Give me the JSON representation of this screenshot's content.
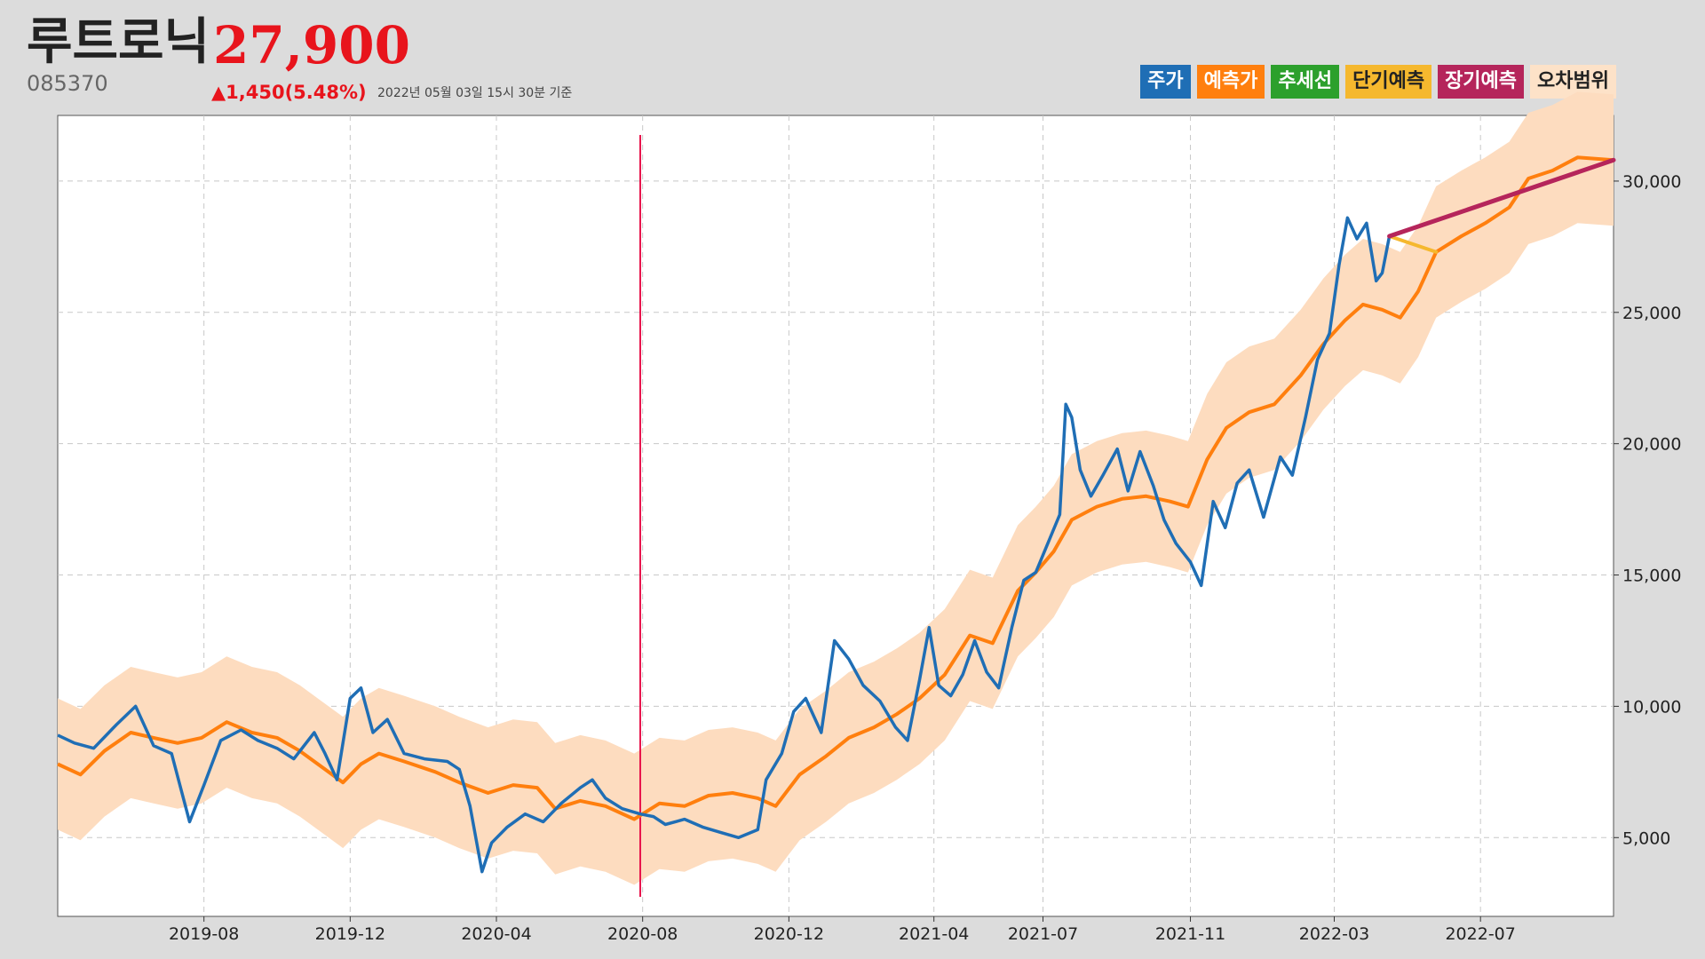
{
  "header": {
    "name": "루트로닉",
    "price": "27,900",
    "code": "085370",
    "change": "▲1,450(5.48%)",
    "timestamp": "2022년 05월 03일 15시 30분 기준"
  },
  "legend": [
    {
      "label": "주가",
      "bg": "#1f6eb5",
      "fg": "#ffffff"
    },
    {
      "label": "예측가",
      "bg": "#ff7f0e",
      "fg": "#ffffff"
    },
    {
      "label": "추세선",
      "bg": "#2ca02c",
      "fg": "#ffffff"
    },
    {
      "label": "단기예측",
      "bg": "#f5b82e",
      "fg": "#222222"
    },
    {
      "label": "장기예측",
      "bg": "#b5255b",
      "fg": "#ffffff"
    },
    {
      "label": "오차범위",
      "bg": "#fde2c8",
      "fg": "#222222"
    }
  ],
  "colors": {
    "price": "#1f6eb5",
    "prediction": "#ff7f0e",
    "band": "#fddcbf",
    "short_term": "#f5b82e",
    "long_term": "#b5255b",
    "marker": "#e8144c"
  },
  "chart_data": {
    "type": "line",
    "x_ticks": [
      "2019-08",
      "2019-12",
      "2020-04",
      "2020-08",
      "2020-12",
      "2021-04",
      "2021-07",
      "2021-11",
      "2022-03",
      "2022-07"
    ],
    "y_ticks": [
      "5,000",
      "10,000",
      "15,000",
      "20,000",
      "25,000",
      "30,000"
    ],
    "y_tick_values": [
      5000,
      10000,
      15000,
      20000,
      25000,
      30000
    ],
    "xlim": [
      "2019-04-01",
      "2022-10-20"
    ],
    "ylim": [
      2000,
      32500
    ],
    "grid": true,
    "marker_date": "2020-07-30",
    "band_width": 2500,
    "series": [
      {
        "name": "주가",
        "points": [
          [
            "2019-04-01",
            8900
          ],
          [
            "2019-04-15",
            8600
          ],
          [
            "2019-05-01",
            8400
          ],
          [
            "2019-05-20",
            9300
          ],
          [
            "2019-06-05",
            10000
          ],
          [
            "2019-06-20",
            8500
          ],
          [
            "2019-07-05",
            8200
          ],
          [
            "2019-07-20",
            5600
          ],
          [
            "2019-08-01",
            7000
          ],
          [
            "2019-08-15",
            8700
          ],
          [
            "2019-09-01",
            9100
          ],
          [
            "2019-09-15",
            8700
          ],
          [
            "2019-10-01",
            8400
          ],
          [
            "2019-10-15",
            8000
          ],
          [
            "2019-11-01",
            9000
          ],
          [
            "2019-11-10",
            8200
          ],
          [
            "2019-11-20",
            7200
          ],
          [
            "2019-12-01",
            10300
          ],
          [
            "2019-12-10",
            10700
          ],
          [
            "2019-12-20",
            9000
          ],
          [
            "2020-01-01",
            9500
          ],
          [
            "2020-01-15",
            8200
          ],
          [
            "2020-02-01",
            8000
          ],
          [
            "2020-02-20",
            7900
          ],
          [
            "2020-03-01",
            7600
          ],
          [
            "2020-03-10",
            6200
          ],
          [
            "2020-03-20",
            3700
          ],
          [
            "2020-03-28",
            4800
          ],
          [
            "2020-04-10",
            5400
          ],
          [
            "2020-04-25",
            5900
          ],
          [
            "2020-05-10",
            5600
          ],
          [
            "2020-05-25",
            6300
          ],
          [
            "2020-06-10",
            6900
          ],
          [
            "2020-06-20",
            7200
          ],
          [
            "2020-07-01",
            6500
          ],
          [
            "2020-07-15",
            6100
          ],
          [
            "2020-07-30",
            5900
          ],
          [
            "2020-08-10",
            5800
          ],
          [
            "2020-08-20",
            5500
          ],
          [
            "2020-09-05",
            5700
          ],
          [
            "2020-09-20",
            5400
          ],
          [
            "2020-10-05",
            5200
          ],
          [
            "2020-10-20",
            5000
          ],
          [
            "2020-11-05",
            5300
          ],
          [
            "2020-11-12",
            7200
          ],
          [
            "2020-11-25",
            8200
          ],
          [
            "2020-12-05",
            9800
          ],
          [
            "2020-12-15",
            10300
          ],
          [
            "2020-12-28",
            9000
          ],
          [
            "2021-01-08",
            12500
          ],
          [
            "2021-01-20",
            11800
          ],
          [
            "2021-02-01",
            10800
          ],
          [
            "2021-02-15",
            10200
          ],
          [
            "2021-02-28",
            9200
          ],
          [
            "2021-03-10",
            8700
          ],
          [
            "2021-03-20",
            11000
          ],
          [
            "2021-03-28",
            13000
          ],
          [
            "2021-04-05",
            10800
          ],
          [
            "2021-04-15",
            10400
          ],
          [
            "2021-04-25",
            11200
          ],
          [
            "2021-05-05",
            12500
          ],
          [
            "2021-05-15",
            11300
          ],
          [
            "2021-05-25",
            10700
          ],
          [
            "2021-06-05",
            13000
          ],
          [
            "2021-06-15",
            14800
          ],
          [
            "2021-06-25",
            15100
          ],
          [
            "2021-07-05",
            16200
          ],
          [
            "2021-07-15",
            17300
          ],
          [
            "2021-07-20",
            21500
          ],
          [
            "2021-07-25",
            21000
          ],
          [
            "2021-08-01",
            19000
          ],
          [
            "2021-08-10",
            18000
          ],
          [
            "2021-08-20",
            18800
          ],
          [
            "2021-09-01",
            19800
          ],
          [
            "2021-09-10",
            18200
          ],
          [
            "2021-09-20",
            19700
          ],
          [
            "2021-10-01",
            18400
          ],
          [
            "2021-10-10",
            17100
          ],
          [
            "2021-10-20",
            16200
          ],
          [
            "2021-11-01",
            15500
          ],
          [
            "2021-11-10",
            14600
          ],
          [
            "2021-11-20",
            17800
          ],
          [
            "2021-11-30",
            16800
          ],
          [
            "2021-12-10",
            18500
          ],
          [
            "2021-12-20",
            19000
          ],
          [
            "2022-01-01",
            17200
          ],
          [
            "2022-01-15",
            19500
          ],
          [
            "2022-01-25",
            18800
          ],
          [
            "2022-02-05",
            21000
          ],
          [
            "2022-02-15",
            23200
          ],
          [
            "2022-02-25",
            24200
          ],
          [
            "2022-03-05",
            26800
          ],
          [
            "2022-03-12",
            28600
          ],
          [
            "2022-03-20",
            27800
          ],
          [
            "2022-03-28",
            28400
          ],
          [
            "2022-04-05",
            26200
          ],
          [
            "2022-04-10",
            26500
          ],
          [
            "2022-04-16",
            27900
          ]
        ]
      },
      {
        "name": "예측가",
        "points": [
          [
            "2019-04-01",
            7800
          ],
          [
            "2019-04-20",
            7400
          ],
          [
            "2019-05-10",
            8300
          ],
          [
            "2019-06-01",
            9000
          ],
          [
            "2019-06-20",
            8800
          ],
          [
            "2019-07-10",
            8600
          ],
          [
            "2019-07-30",
            8800
          ],
          [
            "2019-08-20",
            9400
          ],
          [
            "2019-09-10",
            9000
          ],
          [
            "2019-10-01",
            8800
          ],
          [
            "2019-10-20",
            8300
          ],
          [
            "2019-11-10",
            7600
          ],
          [
            "2019-11-25",
            7100
          ],
          [
            "2019-12-10",
            7800
          ],
          [
            "2019-12-25",
            8200
          ],
          [
            "2020-01-15",
            7900
          ],
          [
            "2020-02-10",
            7500
          ],
          [
            "2020-03-01",
            7100
          ],
          [
            "2020-03-25",
            6700
          ],
          [
            "2020-04-15",
            7000
          ],
          [
            "2020-05-05",
            6900
          ],
          [
            "2020-05-20",
            6100
          ],
          [
            "2020-06-10",
            6400
          ],
          [
            "2020-07-01",
            6200
          ],
          [
            "2020-07-25",
            5700
          ],
          [
            "2020-08-15",
            6300
          ],
          [
            "2020-09-05",
            6200
          ],
          [
            "2020-09-25",
            6600
          ],
          [
            "2020-10-15",
            6700
          ],
          [
            "2020-11-05",
            6500
          ],
          [
            "2020-11-20",
            6200
          ],
          [
            "2020-12-10",
            7400
          ],
          [
            "2021-01-01",
            8100
          ],
          [
            "2021-01-20",
            8800
          ],
          [
            "2021-02-10",
            9200
          ],
          [
            "2021-03-01",
            9700
          ],
          [
            "2021-03-20",
            10300
          ],
          [
            "2021-04-10",
            11200
          ],
          [
            "2021-05-01",
            12700
          ],
          [
            "2021-05-20",
            12400
          ],
          [
            "2021-06-10",
            14400
          ],
          [
            "2021-06-25",
            15100
          ],
          [
            "2021-07-10",
            15900
          ],
          [
            "2021-07-25",
            17100
          ],
          [
            "2021-08-15",
            17600
          ],
          [
            "2021-09-05",
            17900
          ],
          [
            "2021-09-25",
            18000
          ],
          [
            "2021-10-15",
            17800
          ],
          [
            "2021-10-30",
            17600
          ],
          [
            "2021-11-15",
            19400
          ],
          [
            "2021-12-01",
            20600
          ],
          [
            "2021-12-20",
            21200
          ],
          [
            "2022-01-10",
            21500
          ],
          [
            "2022-02-01",
            22600
          ],
          [
            "2022-02-20",
            23800
          ],
          [
            "2022-03-10",
            24700
          ],
          [
            "2022-03-25",
            25300
          ],
          [
            "2022-04-10",
            25100
          ],
          [
            "2022-04-25",
            24800
          ],
          [
            "2022-05-10",
            25800
          ],
          [
            "2022-05-25",
            27300
          ],
          [
            "2022-06-15",
            27900
          ],
          [
            "2022-07-05",
            28400
          ],
          [
            "2022-07-25",
            29000
          ],
          [
            "2022-08-10",
            30100
          ],
          [
            "2022-08-30",
            30400
          ],
          [
            "2022-09-20",
            30900
          ],
          [
            "2022-10-20",
            30800
          ]
        ]
      },
      {
        "name": "단기예측",
        "points": [
          [
            "2022-04-16",
            27900
          ],
          [
            "2022-05-25",
            27300
          ]
        ]
      },
      {
        "name": "장기예측",
        "points": [
          [
            "2022-04-16",
            27900
          ],
          [
            "2022-10-20",
            30800
          ]
        ]
      }
    ]
  }
}
